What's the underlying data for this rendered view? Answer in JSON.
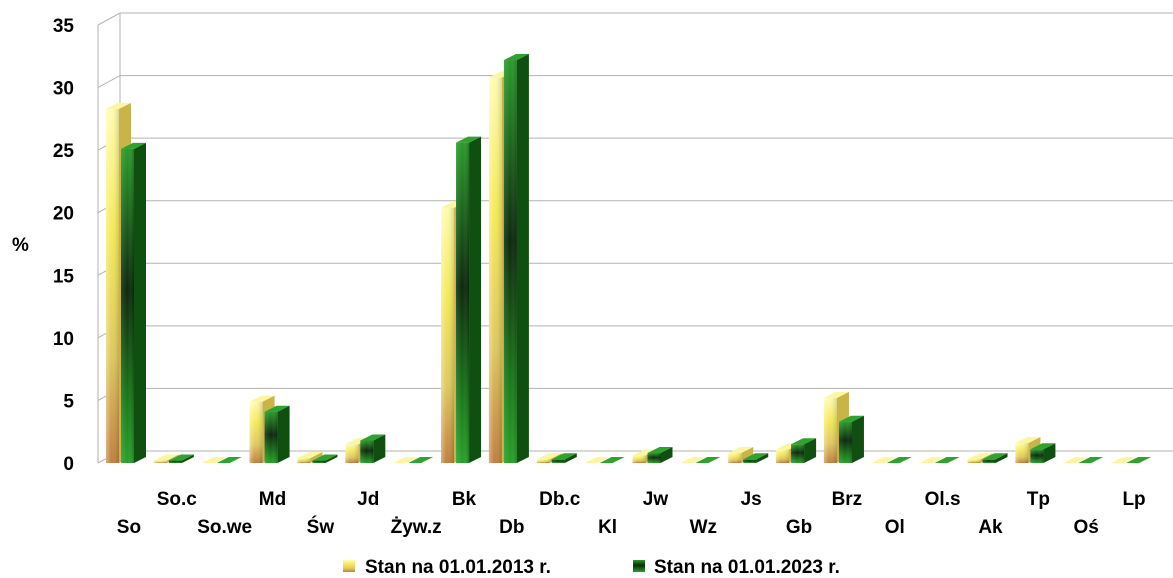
{
  "chart_data": {
    "type": "bar",
    "title": "",
    "xlabel": "",
    "ylabel": "%",
    "ylim": [
      0,
      35
    ],
    "yticks": [
      0,
      5,
      10,
      15,
      20,
      25,
      30,
      35
    ],
    "grid": true,
    "legend_position": "bottom",
    "categories": [
      "So",
      "So.c",
      "So.we",
      "Md",
      "Św",
      "Jd",
      "Żyw.z",
      "Bk",
      "Db",
      "Db.c",
      "Kl",
      "Jw",
      "Wz",
      "Js",
      "Gb",
      "Brz",
      "Ol",
      "Ol.s",
      "Ak",
      "Tp",
      "Oś",
      "Lp"
    ],
    "series": [
      {
        "name": "Stan na 01.01.2013 r.",
        "color": "#f2e860",
        "values": [
          28.3,
          0.2,
          0.0,
          4.9,
          0.4,
          1.5,
          0.0,
          20.4,
          30.8,
          0.3,
          0.0,
          0.6,
          0.0,
          0.8,
          1.1,
          5.2,
          0.0,
          0.0,
          0.3,
          1.6,
          0.0,
          0.0
        ]
      },
      {
        "name": "Stan na 01.01.2023 r.",
        "color": "#1f8c1f",
        "values": [
          25.1,
          0.2,
          0.0,
          4.1,
          0.2,
          1.8,
          0.0,
          25.6,
          32.2,
          0.3,
          0.0,
          0.8,
          0.0,
          0.3,
          1.5,
          3.3,
          0.0,
          0.0,
          0.3,
          1.1,
          0.0,
          0.0
        ]
      }
    ]
  }
}
